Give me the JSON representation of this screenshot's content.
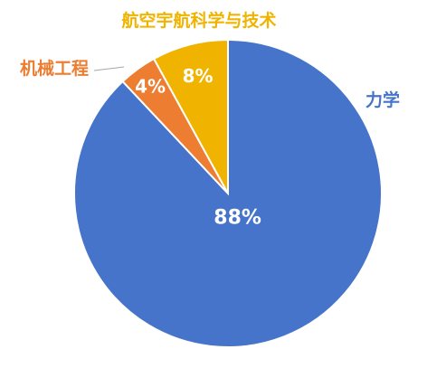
{
  "chart_data": {
    "type": "pie",
    "title": "",
    "start_angle_deg": 0,
    "direction": "clockwise",
    "slices": [
      {
        "label": "力学",
        "value": 88,
        "value_label": "88%",
        "color": "#4674CA"
      },
      {
        "label": "机械工程",
        "value": 4,
        "value_label": "4%",
        "color": "#ED7D31"
      },
      {
        "label": "航空宇航科学与技术",
        "value": 8,
        "value_label": "8%",
        "color": "#F0B400"
      }
    ],
    "legend": "none",
    "labels_outside": true
  }
}
